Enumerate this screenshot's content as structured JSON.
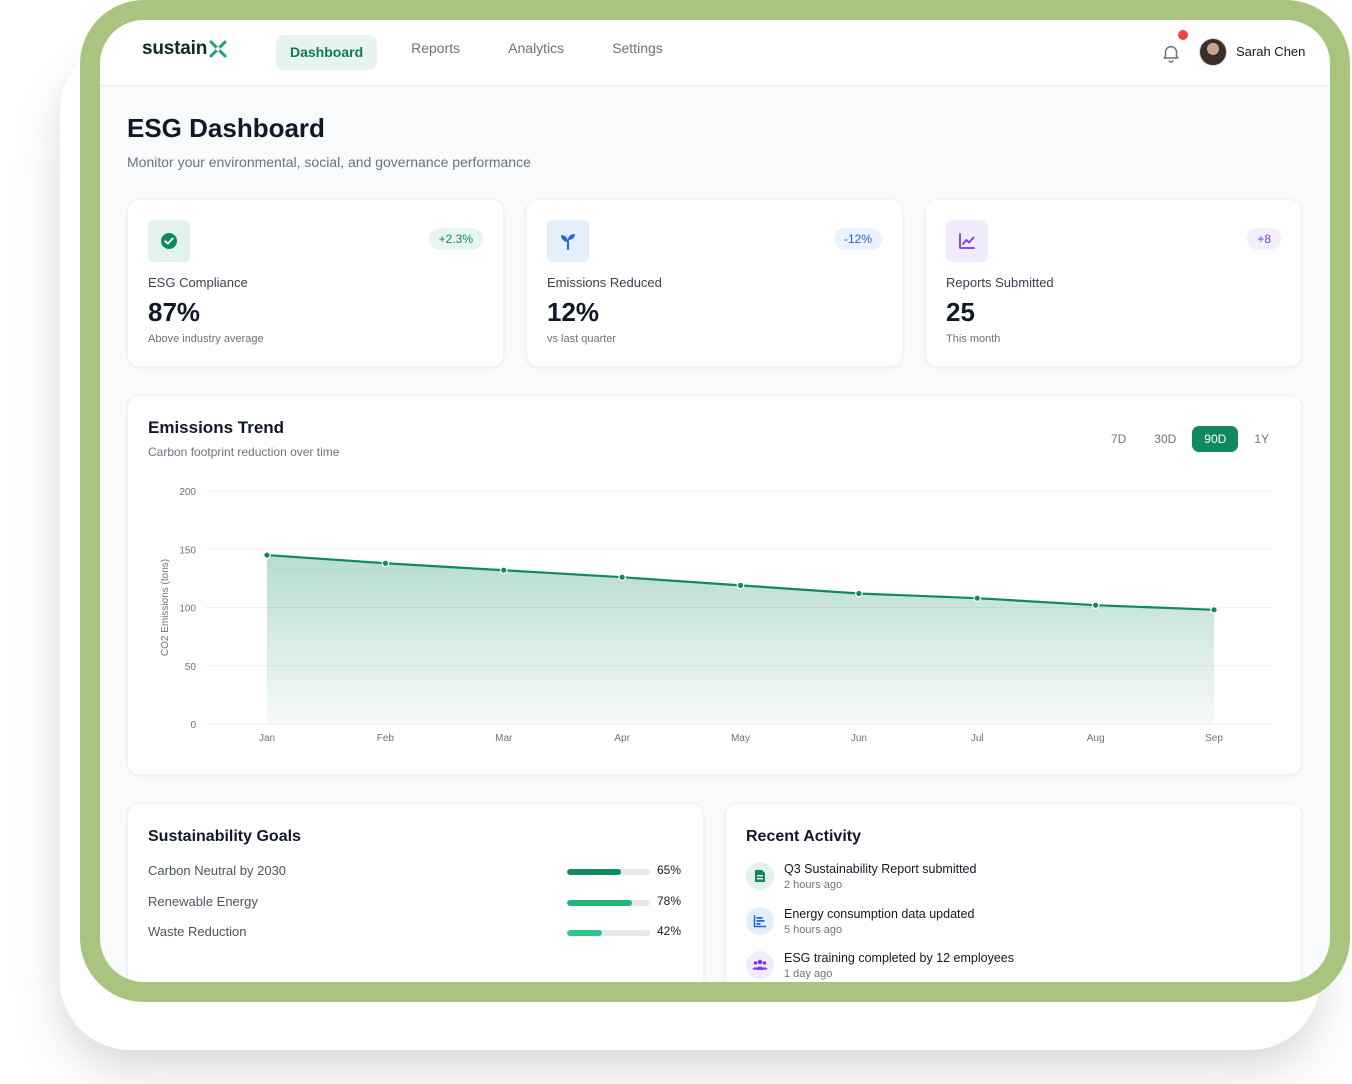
{
  "app": {
    "logo_text": "sustain",
    "logo_mark": "X",
    "nav": [
      {
        "label": "Dashboard",
        "active": true
      },
      {
        "label": "Reports",
        "active": false
      },
      {
        "label": "Analytics",
        "active": false
      },
      {
        "label": "Settings",
        "active": false
      }
    ],
    "user_name": "Sarah Chen",
    "notification_icon": "bell-icon"
  },
  "page": {
    "title": "ESG Dashboard",
    "subtitle": "Monitor your environmental, social, and governance performance"
  },
  "stats": [
    {
      "icon": "check-circle-icon",
      "badge": "+2.3%",
      "label": "ESG Compliance",
      "value": "87%",
      "note": "Above industry average",
      "accent": "#0f8a5f",
      "icon_bg": "#e3f3ec",
      "badge_bg": "#e8f5ef",
      "badge_color": "#0f8a5f"
    },
    {
      "icon": "sprout-icon",
      "badge": "-12%",
      "label": "Emissions Reduced",
      "value": "12%",
      "note": "vs last quarter",
      "accent": "#2563eb",
      "icon_bg": "#e3effb",
      "badge_bg": "#eaf2fd",
      "badge_color": "#2563eb"
    },
    {
      "icon": "line-chart-icon",
      "badge": "+8",
      "label": "Reports Submitted",
      "value": "25",
      "note": "This month",
      "accent": "#7c3aed",
      "icon_bg": "#f1ebfb",
      "badge_bg": "#f4effc",
      "badge_color": "#7c3aed"
    }
  ],
  "chart_panel": {
    "title": "Emissions Trend",
    "subtitle": "Carbon footprint reduction over time",
    "ranges": [
      {
        "label": "7D",
        "active": false
      },
      {
        "label": "30D",
        "active": false
      },
      {
        "label": "90D",
        "active": true
      },
      {
        "label": "1Y",
        "active": false
      }
    ]
  },
  "chart_data": {
    "type": "area",
    "title": "",
    "xlabel": "",
    "ylabel": "CO2 Emissions (tons)",
    "categories": [
      "Jan",
      "Feb",
      "Mar",
      "Apr",
      "May",
      "Jun",
      "Jul",
      "Aug",
      "Sep"
    ],
    "series": [
      {
        "values": [
          145,
          138,
          132,
          126,
          119,
          112,
          108,
          102,
          98
        ],
        "color": "#0f8a5f"
      }
    ],
    "ylim": [
      0,
      200
    ],
    "yticks": [
      0,
      50,
      100,
      150,
      200
    ],
    "grid": true
  },
  "goals": {
    "title": "Sustainability Goals",
    "items": [
      {
        "label": "Carbon Neutral by 2030",
        "percent": 65,
        "percent_text": "65%",
        "color": "#0f8a5f"
      },
      {
        "label": "Renewable Energy",
        "percent": 78,
        "percent_text": "78%",
        "color": "#22b57a"
      },
      {
        "label": "Waste Reduction",
        "percent": 42,
        "percent_text": "42%",
        "color": "#34c48b"
      }
    ]
  },
  "activity": {
    "title": "Recent Activity",
    "items": [
      {
        "title": "Q3 Sustainability Report submitted",
        "time": "2 hours ago",
        "icon": "document-icon",
        "icon_bg": "#e3f3ec",
        "icon_color": "#0f8a5f"
      },
      {
        "title": "Energy consumption data updated",
        "time": "5 hours ago",
        "icon": "bar-chart-icon",
        "icon_bg": "#e3effb",
        "icon_color": "#2563eb"
      },
      {
        "title": "ESG training completed by 12 employees",
        "time": "1 day ago",
        "icon": "users-icon",
        "icon_bg": "#f1ebfb",
        "icon_color": "#7c3aed"
      }
    ]
  }
}
